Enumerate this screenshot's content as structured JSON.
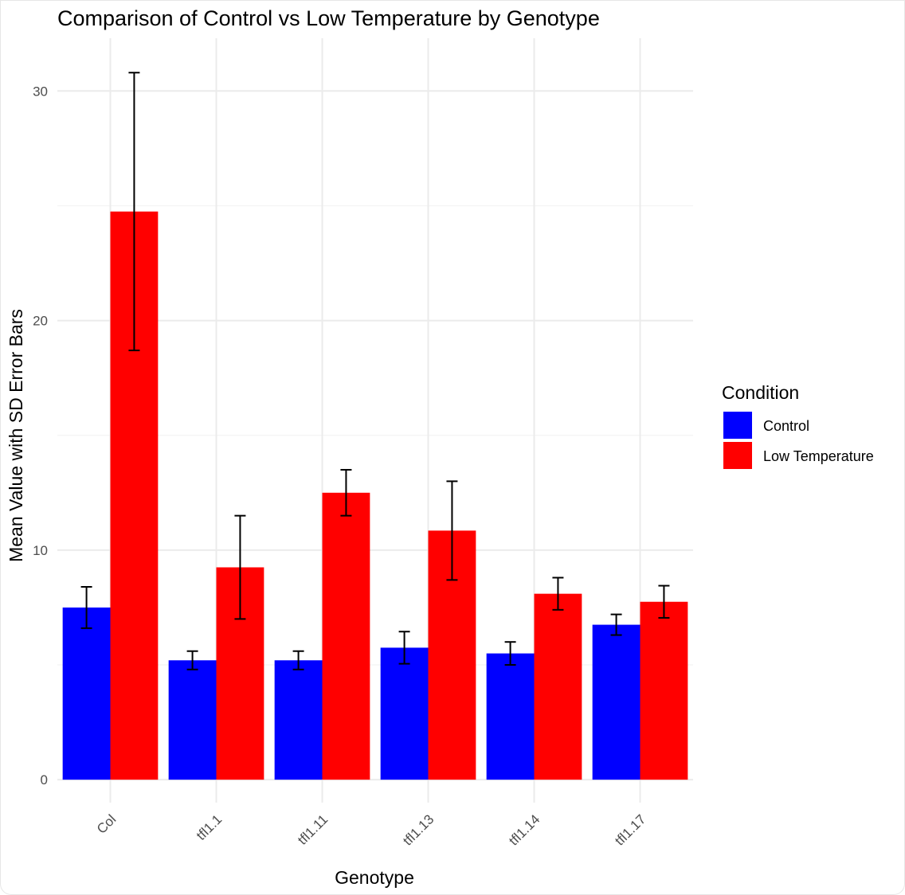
{
  "chart_data": {
    "type": "bar",
    "title": "Comparison of Control vs Low Temperature by Genotype",
    "xlabel": "Genotype",
    "ylabel": "Mean Value with SD Error Bars",
    "categories": [
      "Col",
      "tfl1.1",
      "tfl1.11",
      "tfl1.13",
      "tfl1.14",
      "tfl1.17"
    ],
    "series": [
      {
        "name": "Control",
        "color": "#0000ff",
        "values": [
          7.5,
          5.2,
          5.2,
          5.75,
          5.5,
          6.75
        ],
        "sd": [
          0.9,
          0.4,
          0.4,
          0.7,
          0.5,
          0.45
        ]
      },
      {
        "name": "Low Temperature",
        "color": "#ff0000",
        "values": [
          24.75,
          9.25,
          12.5,
          10.85,
          8.1,
          7.75
        ],
        "sd": [
          6.05,
          2.25,
          1.0,
          2.15,
          0.7,
          0.7
        ]
      }
    ],
    "ylim": [
      -1.0,
      32.3
    ],
    "yticks": [
      0,
      10,
      20,
      30
    ],
    "y_minor_ticks": [
      5,
      15,
      25
    ],
    "grid": true,
    "legend": {
      "title": "Condition",
      "position": "right"
    },
    "x_tick_rotation_deg": 45
  }
}
